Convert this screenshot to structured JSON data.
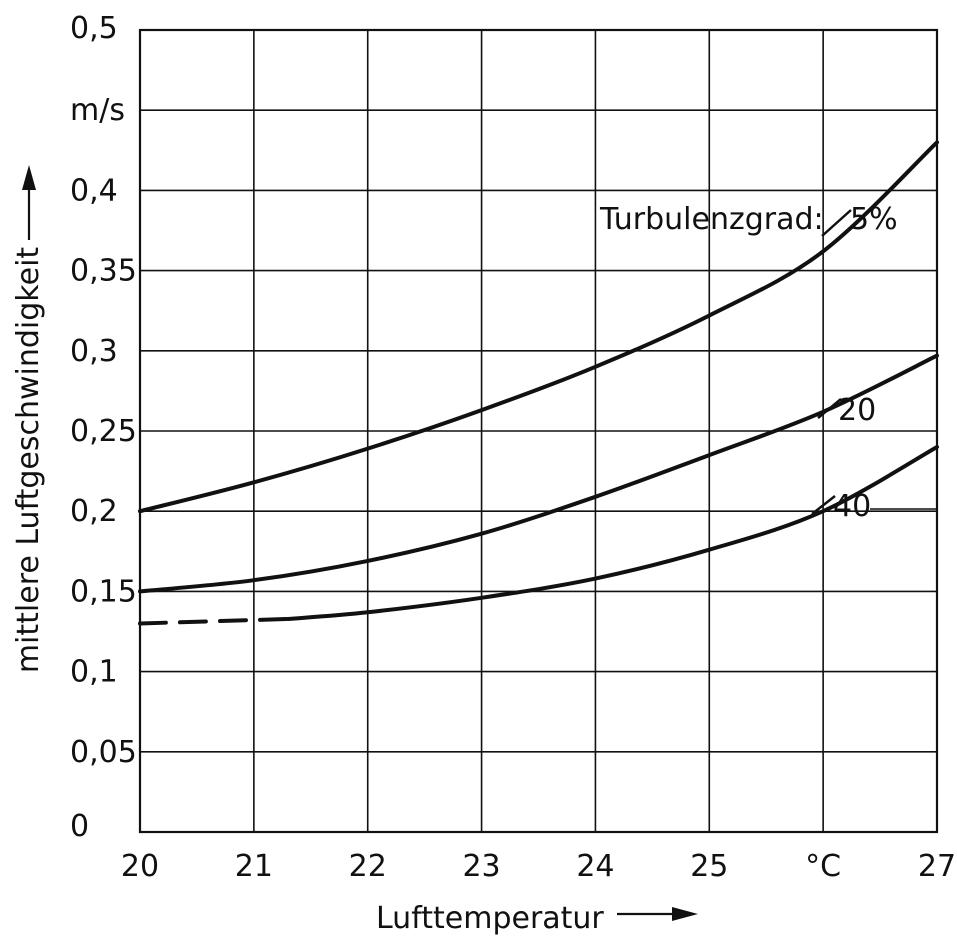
{
  "chart_data": {
    "type": "line",
    "title": "",
    "xlabel": "Lufttemperatur",
    "ylabel": "mittlere Luftgeschwindigkeit",
    "y_unit": "m/s",
    "x_unit": "°C",
    "xlim": [
      20,
      27
    ],
    "ylim": [
      0,
      0.5
    ],
    "grid": true,
    "x_ticks": [
      {
        "value": 20,
        "label": "20"
      },
      {
        "value": 21,
        "label": "21"
      },
      {
        "value": 22,
        "label": "22"
      },
      {
        "value": 23,
        "label": "23"
      },
      {
        "value": 24,
        "label": "24"
      },
      {
        "value": 25,
        "label": "25"
      },
      {
        "value": 26,
        "label": "°C"
      },
      {
        "value": 27,
        "label": "27"
      }
    ],
    "y_ticks": [
      {
        "value": 0,
        "label": "0"
      },
      {
        "value": 0.05,
        "label": "0,05"
      },
      {
        "value": 0.1,
        "label": "0,1"
      },
      {
        "value": 0.15,
        "label": "0,15"
      },
      {
        "value": 0.2,
        "label": "0,2"
      },
      {
        "value": 0.25,
        "label": "0,25"
      },
      {
        "value": 0.3,
        "label": "0,3"
      },
      {
        "value": 0.35,
        "label": "0,35"
      },
      {
        "value": 0.4,
        "label": "0,4"
      },
      {
        "value": 0.45,
        "label": "m/s"
      },
      {
        "value": 0.5,
        "label": "0,5"
      }
    ],
    "legend_title": "Turbulenzgrad:",
    "series": [
      {
        "name": "5%",
        "x": [
          20,
          21,
          22,
          23,
          24,
          25,
          26,
          27
        ],
        "y": [
          0.2,
          0.218,
          0.239,
          0.263,
          0.29,
          0.322,
          0.362,
          0.43
        ]
      },
      {
        "name": "20",
        "x": [
          20,
          21,
          22,
          23,
          24,
          25,
          26,
          27
        ],
        "y": [
          0.15,
          0.157,
          0.169,
          0.186,
          0.209,
          0.235,
          0.262,
          0.297
        ]
      },
      {
        "name": "40",
        "x": [
          20,
          21,
          22,
          23,
          24,
          25,
          26,
          27
        ],
        "y": [
          0.13,
          0.131,
          0.137,
          0.146,
          0.158,
          0.176,
          0.2,
          0.24
        ],
        "dashed_until_x": 21.3
      }
    ]
  }
}
